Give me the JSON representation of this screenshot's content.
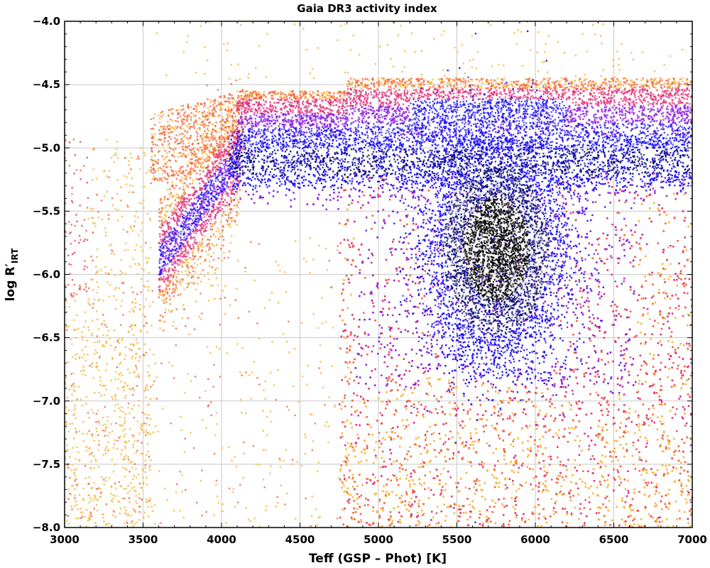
{
  "chart_data": {
    "type": "scatter",
    "title": "Gaia DR3 activity index",
    "xlabel": "Teff (GSP – Phot) [K]",
    "ylabel_prefix": "log R′",
    "ylabel_subscript": "IRT",
    "xlim": [
      3000,
      7000
    ],
    "ylim": [
      -8.0,
      -4.0
    ],
    "x_ticks": [
      3000,
      3500,
      4000,
      4500,
      5000,
      5500,
      6000,
      6500,
      7000
    ],
    "y_ticks": [
      -8.0,
      -7.5,
      -7.0,
      -6.5,
      -6.0,
      -5.5,
      -5.0,
      -4.5,
      -4.0
    ],
    "x_tick_labels": [
      "3000",
      "3500",
      "4000",
      "4500",
      "5000",
      "5500",
      "6000",
      "6500",
      "7000"
    ],
    "y_tick_labels": [
      "−8.0",
      "−7.5",
      "−7.0",
      "−6.5",
      "−6.0",
      "−5.5",
      "−5.0",
      "−4.5",
      "−4.0"
    ],
    "grid": true,
    "density_colormap": [
      "#f7b436",
      "#f4603f",
      "#e0337a",
      "#8a1fe0",
      "#1e10f2",
      "#07056a",
      "#000000"
    ],
    "density_regions": [
      {
        "region": "main-sequence-dense-core",
        "x": [
          5500,
          6100
        ],
        "y": [
          -6.4,
          -5.0
        ],
        "peak": [
          5750,
          -5.8
        ],
        "level": "highest"
      },
      {
        "region": "upper-ridge",
        "x": [
          4100,
          7000
        ],
        "y": [
          -5.3,
          -4.9
        ],
        "level": "high"
      },
      {
        "region": "cool-arc",
        "x": [
          3650,
          4100
        ],
        "y": [
          -5.8,
          -4.5
        ],
        "level": "medium"
      },
      {
        "region": "hot-envelope",
        "x": [
          4750,
          7000
        ],
        "y": [
          -8.0,
          -4.4
        ],
        "level": "medium"
      },
      {
        "region": "sparse-cool-stars",
        "x": [
          3000,
          3500
        ],
        "y": [
          -8.0,
          -4.8
        ],
        "level": "low"
      }
    ]
  }
}
